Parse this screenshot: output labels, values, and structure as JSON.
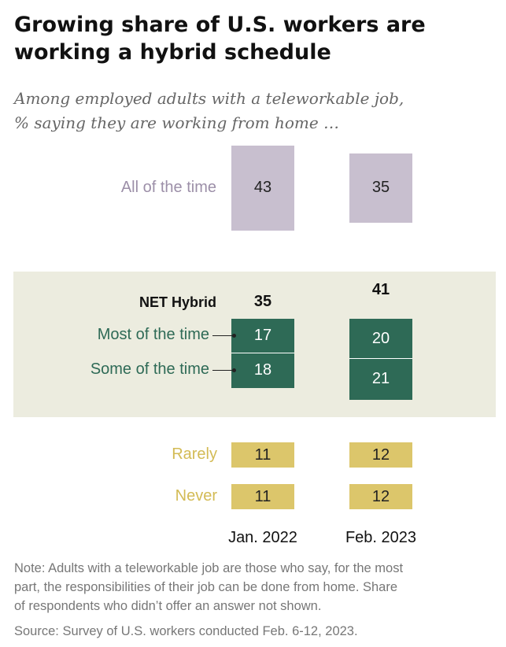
{
  "chart_data": {
    "type": "bar",
    "title": "Growing share of U.S. workers are working a hybrid schedule",
    "subtitle_lines": [
      "Among employed adults with a teleworkable job,",
      "% saying they are working from home …"
    ],
    "categories": [
      "Jan. 2022",
      "Feb. 2023"
    ],
    "series": [
      {
        "name": "All of the time",
        "values": [
          43,
          35
        ],
        "color": "#c8bfcf"
      },
      {
        "name": "Most of the time",
        "values": [
          17,
          20
        ],
        "color": "#2e6a56"
      },
      {
        "name": "Some of the time",
        "values": [
          18,
          21
        ],
        "color": "#2e6a56"
      },
      {
        "name": "Rarely",
        "values": [
          11,
          12
        ],
        "color": "#dcc66b"
      },
      {
        "name": "Never",
        "values": [
          11,
          12
        ],
        "color": "#dcc66b"
      }
    ],
    "net_hybrid": {
      "label": "NET Hybrid",
      "values": [
        35,
        41
      ]
    },
    "label_colors": {
      "all": "#9c8fa8",
      "hybrid": "#2e6a56",
      "low": "#d3bb55"
    },
    "band_color": "#ececdf",
    "note_lines": [
      "Note: Adults with a teleworkable job are those who say, for the most",
      "part, the responsibilities of their job can be done from home. Share",
      "of respondents who didn’t offer an answer not shown."
    ],
    "source": "Source: Survey of U.S. workers conducted Feb. 6-12, 2023."
  }
}
